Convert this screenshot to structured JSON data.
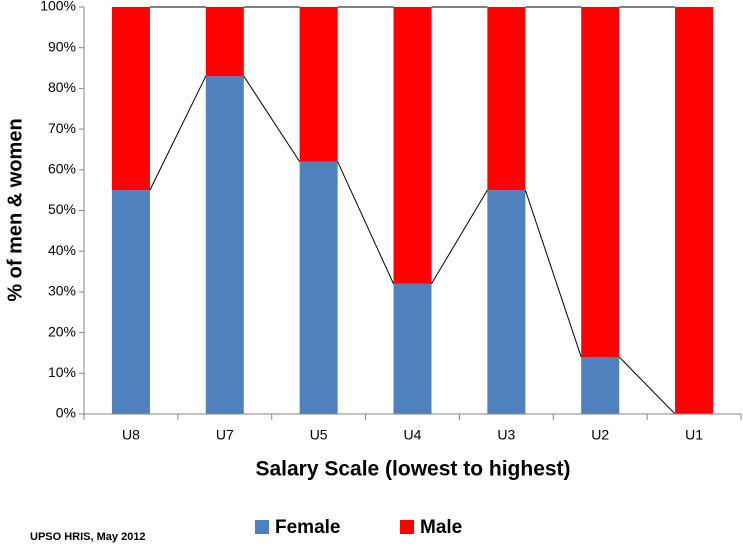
{
  "chart_data": {
    "type": "stacked_bar",
    "x_label": "Salary Scale (lowest to highest)",
    "y_label": "% of men & women",
    "note": "UPSO HRIS, May 2012",
    "categories": [
      "U8",
      "U7",
      "U5",
      "U4",
      "U3",
      "U2",
      "U1"
    ],
    "series": [
      {
        "name": "Female",
        "color": "#4f81bd",
        "values": [
          55,
          83,
          62,
          32,
          55,
          14,
          0
        ]
      },
      {
        "name": "Male",
        "color": "#ff0000",
        "values": [
          45,
          17,
          38,
          68,
          45,
          86,
          100
        ]
      }
    ],
    "ylim": [
      0,
      100
    ],
    "yticks": [
      {
        "value": 0,
        "label": "0%"
      },
      {
        "value": 10,
        "label": "10%"
      },
      {
        "value": 20,
        "label": "20%"
      },
      {
        "value": 30,
        "label": "30%"
      },
      {
        "value": 40,
        "label": "40%"
      },
      {
        "value": 50,
        "label": "50%"
      },
      {
        "value": 60,
        "label": "60%"
      },
      {
        "value": 70,
        "label": "70%"
      },
      {
        "value": 80,
        "label": "80%"
      },
      {
        "value": 90,
        "label": "90%"
      },
      {
        "value": 100,
        "label": "100%"
      }
    ],
    "series_lines": true,
    "legend": "bottom"
  }
}
